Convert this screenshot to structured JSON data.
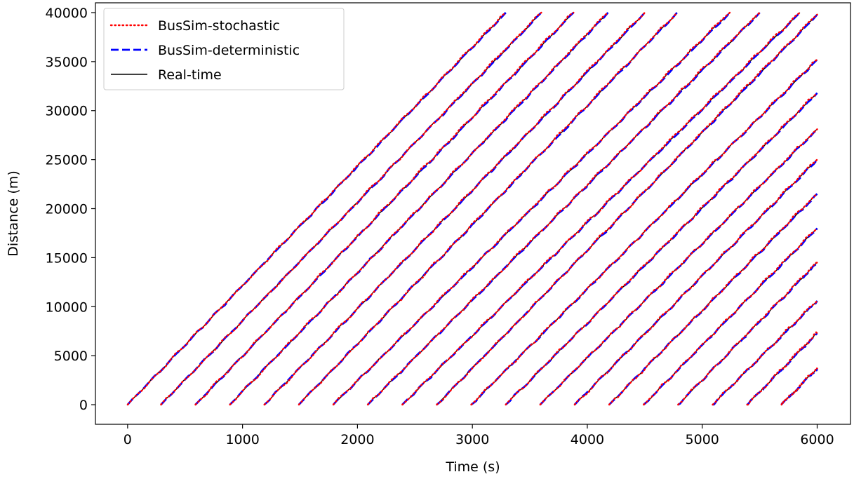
{
  "chart_data": {
    "type": "line",
    "title": "",
    "xlabel": "Time (s)",
    "ylabel": "Distance (m)",
    "xlim": [
      -280,
      6290
    ],
    "ylim": [
      -2000,
      41000
    ],
    "xticks": [
      0,
      1000,
      2000,
      3000,
      4000,
      5000,
      6000
    ],
    "yticks": [
      0,
      5000,
      10000,
      15000,
      20000,
      25000,
      30000,
      35000,
      40000
    ],
    "xtick_labels": [
      "0",
      "1000",
      "2000",
      "3000",
      "4000",
      "5000",
      "6000"
    ],
    "ytick_labels": [
      "0",
      "5000",
      "10000",
      "15000",
      "20000",
      "25000",
      "30000",
      "35000",
      "40000"
    ],
    "grid": false,
    "legend_position": "top-left",
    "route_length_m": 40000,
    "time_end_s": 6000,
    "series": [
      {
        "name": "BusSim-stochastic",
        "color": "#ff0000",
        "style": "dotted"
      },
      {
        "name": "BusSim-deterministic",
        "color": "#0000ff",
        "style": "dashed"
      },
      {
        "name": "Real-time",
        "color": "#000000",
        "style": "solid"
      }
    ],
    "trips": [
      {
        "start": 0,
        "end_time": 3290,
        "end_distance": 40000
      },
      {
        "start": 290,
        "end_time": 3600,
        "end_distance": 40000
      },
      {
        "start": 590,
        "end_time": 3880,
        "end_distance": 40000
      },
      {
        "start": 890,
        "end_time": 4180,
        "end_distance": 40000
      },
      {
        "start": 1190,
        "end_time": 4500,
        "end_distance": 40000
      },
      {
        "start": 1490,
        "end_time": 4780,
        "end_distance": 40000
      },
      {
        "start": 1790,
        "end_time": 5240,
        "end_distance": 40000
      },
      {
        "start": 2090,
        "end_time": 5500,
        "end_distance": 40000
      },
      {
        "start": 2390,
        "end_time": 5850,
        "end_distance": 40000
      },
      {
        "start": 2690,
        "end_time": 6000,
        "end_distance": 39800
      },
      {
        "start": 2990,
        "end_time": 6000,
        "end_distance": 35200
      },
      {
        "start": 3290,
        "end_time": 6000,
        "end_distance": 31800
      },
      {
        "start": 3590,
        "end_time": 6000,
        "end_distance": 28100
      },
      {
        "start": 3890,
        "end_time": 6000,
        "end_distance": 25000
      },
      {
        "start": 4190,
        "end_time": 6000,
        "end_distance": 21500
      },
      {
        "start": 4490,
        "end_time": 6000,
        "end_distance": 18000
      },
      {
        "start": 4790,
        "end_time": 6000,
        "end_distance": 14500
      },
      {
        "start": 5090,
        "end_time": 6000,
        "end_distance": 10600
      },
      {
        "start": 5390,
        "end_time": 6000,
        "end_distance": 7300
      },
      {
        "start": 5690,
        "end_time": 6000,
        "end_distance": 3700
      }
    ]
  }
}
